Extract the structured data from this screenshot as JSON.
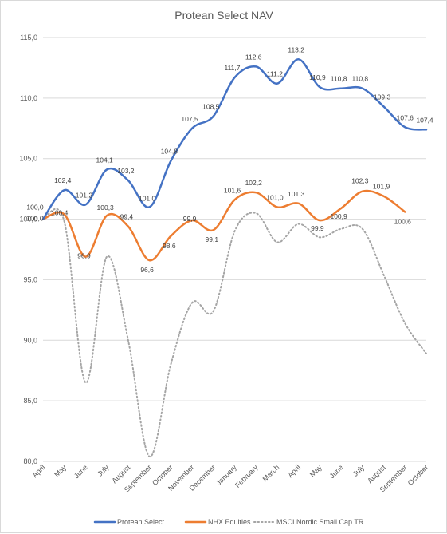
{
  "chart_data": {
    "type": "line",
    "title": "Protean Select NAV",
    "categories": [
      "April",
      "May",
      "June",
      "July",
      "August",
      "September",
      "October",
      "November",
      "December",
      "January",
      "February",
      "March",
      "April",
      "May",
      "June",
      "July",
      "August",
      "September",
      "October"
    ],
    "ylim": [
      80,
      115
    ],
    "yticks": [
      80,
      85,
      90,
      95,
      100,
      105,
      110,
      115
    ],
    "ytick_labels": [
      "80,0",
      "85,0",
      "90,0",
      "95,0",
      "100,0",
      "105,0",
      "110,0",
      "115,0"
    ],
    "grid": true,
    "legend_position": "bottom",
    "series": [
      {
        "name": "Protean Select",
        "color": "#4472c4",
        "style": "solid",
        "values": [
          100.0,
          102.4,
          101.2,
          104.1,
          103.2,
          101.0,
          104.8,
          107.5,
          108.5,
          111.7,
          112.6,
          111.2,
          113.2,
          110.9,
          110.8,
          110.8,
          109.3,
          107.6,
          107.4
        ],
        "labels": [
          "100,0",
          "102,4",
          "101,2",
          "104,1",
          "103,2",
          "101,0",
          "104,8",
          "107,5",
          "108,5",
          "111,7",
          "112,6",
          "111,2",
          "113,2",
          "110,9",
          "110,8",
          "110,8",
          "109,3",
          "107,6",
          "107,4"
        ]
      },
      {
        "name": "NHX Equities",
        "color": "#ed7d31",
        "style": "solid",
        "values": [
          100.0,
          100.4,
          96.9,
          100.3,
          99.4,
          96.6,
          98.6,
          99.9,
          99.1,
          101.6,
          102.2,
          101.0,
          101.3,
          99.9,
          100.9,
          102.3,
          101.9,
          100.6,
          null
        ],
        "labels": [
          "100,0",
          "100,4",
          "96,9",
          "100,3",
          "99,4",
          "96,6",
          "98,6",
          "99,9",
          "99,1",
          "101,6",
          "102,2",
          "101,0",
          "101,3",
          "99,9",
          "100,9",
          "102,3",
          "101,9",
          "100,6",
          ""
        ]
      },
      {
        "name": "MSCI Nordic Small Cap TR",
        "color": "#a5a5a5",
        "style": "dotted",
        "values": [
          100.0,
          99.8,
          86.5,
          96.9,
          90.0,
          80.4,
          88.0,
          93.1,
          92.4,
          99.0,
          100.5,
          98.1,
          99.6,
          98.5,
          99.2,
          99.2,
          95.4,
          91.4,
          88.9
        ]
      }
    ]
  }
}
